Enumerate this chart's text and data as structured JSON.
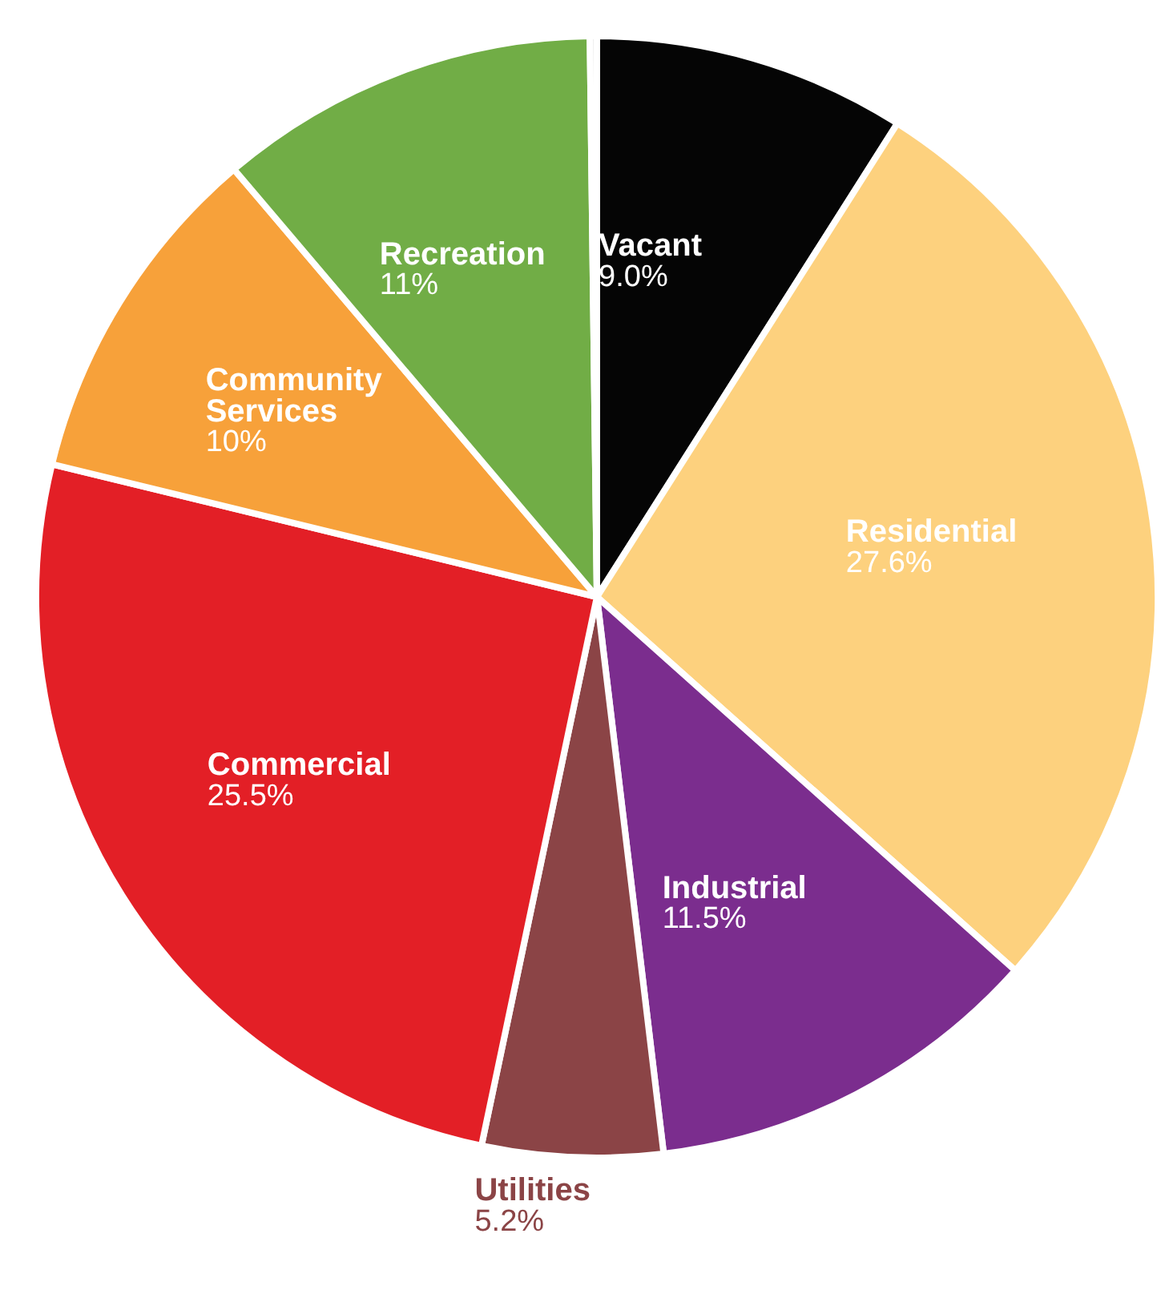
{
  "chart_data": {
    "type": "pie",
    "categories": [
      "Vacant",
      "Residential",
      "Industrial",
      "Utilities",
      "Commercial",
      "Community Services",
      "Recreation",
      null
    ],
    "values": [
      9.0,
      27.6,
      11.5,
      5.2,
      25.5,
      10,
      11,
      0.2
    ],
    "value_labels": [
      "9.0%",
      "27.6%",
      "11.5%",
      "5.2%",
      "25.5%",
      "10%",
      "11%",
      null
    ],
    "colors": [
      "#050505",
      "#fdd17e",
      "#7b2d8e",
      "#8b4446",
      "#e31f26",
      "#f7a13a",
      "#71ad46",
      "#e8e8e8"
    ]
  }
}
